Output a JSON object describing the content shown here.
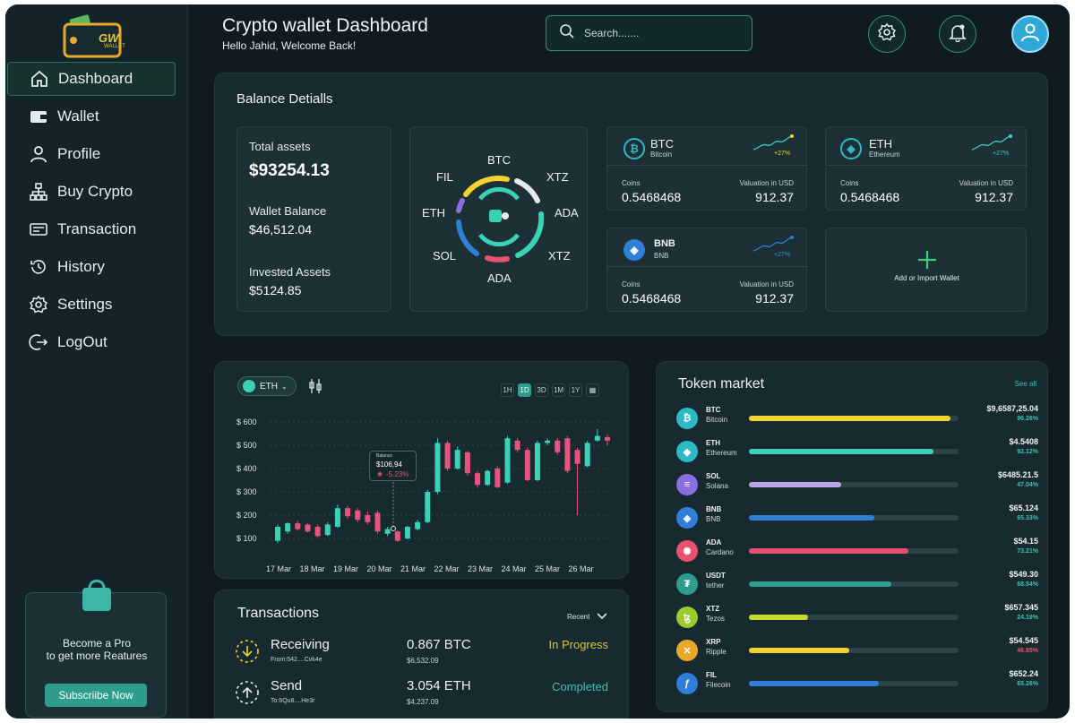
{
  "header": {
    "title": "Crypto wallet Dashboard",
    "subtitle": "Hello Jahid, Welcome Back!",
    "search_placeholder": "Search......."
  },
  "logo": {
    "text": "GW",
    "subtext": "WALLET"
  },
  "sidebar": {
    "items": [
      {
        "label": "Dashboard",
        "icon": "home-icon",
        "active": true
      },
      {
        "label": "Wallet",
        "icon": "wallet-icon"
      },
      {
        "label": "Profile",
        "icon": "user-icon"
      },
      {
        "label": "Buy Crypto",
        "icon": "network-icon"
      },
      {
        "label": "Transaction",
        "icon": "card-icon"
      },
      {
        "label": "History",
        "icon": "history-icon"
      },
      {
        "label": "Settings",
        "icon": "gear-icon"
      },
      {
        "label": "LogOut",
        "icon": "logout-icon"
      }
    ],
    "promo": {
      "line1": "Become a Pro",
      "line2": "to get more Reatures",
      "button": "Subscriibe Now"
    }
  },
  "balance": {
    "title": "Balance Detialls",
    "total_label": "Total assets",
    "total_value": "$93254.13",
    "wallet_label": "Wallet Balance",
    "wallet_value": "$46,512.04",
    "invested_label": "Invested Assets",
    "invested_value": "$5124.85",
    "donut_labels": [
      "BTC",
      "XTZ",
      "ADA",
      "XTZ",
      "ADA",
      "SOL",
      "ETH",
      "FIL"
    ],
    "coins": [
      {
        "symbol": "BTC",
        "name": "Bitcoin",
        "change": "+27%",
        "coins_label": "Coins",
        "coins": "0.5468468",
        "val_label": "Valuation in USD",
        "valuation": "912.37",
        "color": "#2fb9c4"
      },
      {
        "symbol": "ETH",
        "name": "Ethereum",
        "change": "+27%",
        "coins_label": "Coins",
        "coins": "0.5468468",
        "val_label": "Valuation in USD",
        "valuation": "912.37",
        "color": "#2fb9c4"
      },
      {
        "symbol": "BNB",
        "name": "BNB",
        "change": "+27%",
        "coins_label": "Coins",
        "coins": "0.5468468",
        "val_label": "Valuation in USD",
        "valuation": "912.37",
        "color": "#2f7fd6"
      }
    ],
    "add_wallet": "Add or Import Wallet"
  },
  "chart": {
    "coin_selector": "ETH",
    "timeframes": [
      "1H",
      "1D",
      "3D",
      "1M",
      "1Y"
    ],
    "active_timeframe": "1D",
    "tooltip": {
      "title": "Balance",
      "value": "$106,94",
      "change": "-5.23%"
    }
  },
  "chart_data": {
    "type": "candlestick",
    "x_ticks": [
      "17 Mar",
      "18 Mar",
      "19 Mar",
      "20 Mar",
      "21 Mar",
      "22 Mar",
      "23 Mar",
      "24 Mar",
      "25 Mar",
      "26 Mar"
    ],
    "y_ticks": [
      "$ 100",
      "$ 200",
      "$ 300",
      "$ 400",
      "$ 500",
      "$ 600"
    ],
    "ylim": [
      0,
      600
    ],
    "candles": [
      {
        "o": 90,
        "c": 150,
        "h": 160,
        "l": 80
      },
      {
        "o": 130,
        "c": 165,
        "h": 170,
        "l": 120
      },
      {
        "o": 165,
        "c": 140,
        "h": 175,
        "l": 135
      },
      {
        "o": 160,
        "c": 130,
        "h": 165,
        "l": 125
      },
      {
        "o": 150,
        "c": 110,
        "h": 160,
        "l": 105
      },
      {
        "o": 115,
        "c": 160,
        "h": 170,
        "l": 110
      },
      {
        "o": 150,
        "c": 230,
        "h": 245,
        "l": 145
      },
      {
        "o": 230,
        "c": 195,
        "h": 240,
        "l": 185
      },
      {
        "o": 220,
        "c": 180,
        "h": 230,
        "l": 170
      },
      {
        "o": 200,
        "c": 170,
        "h": 215,
        "l": 160
      },
      {
        "o": 210,
        "c": 130,
        "h": 220,
        "l": 120
      },
      {
        "o": 120,
        "c": 140,
        "h": 150,
        "l": 110
      },
      {
        "o": 130,
        "c": 90,
        "h": 135,
        "l": 85
      },
      {
        "o": 100,
        "c": 150,
        "h": 155,
        "l": 95
      },
      {
        "o": 140,
        "c": 170,
        "h": 180,
        "l": 135
      },
      {
        "o": 170,
        "c": 300,
        "h": 310,
        "l": 165
      },
      {
        "o": 300,
        "c": 510,
        "h": 530,
        "l": 290
      },
      {
        "o": 510,
        "c": 400,
        "h": 520,
        "l": 390
      },
      {
        "o": 400,
        "c": 480,
        "h": 495,
        "l": 395
      },
      {
        "o": 470,
        "c": 380,
        "h": 475,
        "l": 370
      },
      {
        "o": 380,
        "c": 330,
        "h": 390,
        "l": 320
      },
      {
        "o": 330,
        "c": 390,
        "h": 395,
        "l": 325
      },
      {
        "o": 400,
        "c": 320,
        "h": 410,
        "l": 315
      },
      {
        "o": 340,
        "c": 530,
        "h": 540,
        "l": 335
      },
      {
        "o": 520,
        "c": 480,
        "h": 530,
        "l": 470
      },
      {
        "o": 480,
        "c": 350,
        "h": 490,
        "l": 345
      },
      {
        "o": 350,
        "c": 510,
        "h": 520,
        "l": 345
      },
      {
        "o": 510,
        "c": 520,
        "h": 530,
        "l": 500
      },
      {
        "o": 520,
        "c": 470,
        "h": 530,
        "l": 460
      },
      {
        "o": 530,
        "c": 390,
        "h": 540,
        "l": 380
      },
      {
        "o": 480,
        "c": 420,
        "h": 490,
        "l": 200
      },
      {
        "o": 410,
        "c": 510,
        "h": 520,
        "l": 405
      },
      {
        "o": 520,
        "c": 540,
        "h": 570,
        "l": 515
      },
      {
        "o": 535,
        "c": 520,
        "h": 545,
        "l": 500
      }
    ]
  },
  "transactions": {
    "title": "Transactions",
    "filter": "Recent",
    "rows": [
      {
        "type": "Receiving",
        "address": "From:542....Cvk4e",
        "amount": "0.867 BTC",
        "usd": "$6,532.09",
        "status": "In Progress",
        "status_color": "#d9c43a"
      },
      {
        "type": "Send",
        "address": "To:6Qu8....He3r",
        "amount": "3.054 ETH",
        "usd": "$4,237.09",
        "status": "Completed",
        "status_color": "#3fc4a8"
      }
    ]
  },
  "token_market": {
    "title": "Token market",
    "see_all": "See all",
    "tokens": [
      {
        "symbol": "BTC",
        "name": "Bitcoin",
        "price": "$9,6587,25.04",
        "pct": "96.26%",
        "fill": 0.96,
        "bar_color": "#f2d130",
        "icon_color": "#2fb9c4",
        "icon": "₿",
        "pct_color": "#3fc4a8"
      },
      {
        "symbol": "ETH",
        "name": "Ethereum",
        "price": "$4.5408",
        "pct": "92.12%",
        "fill": 0.88,
        "bar_color": "#3ad1b5",
        "icon_color": "#2fb9c4",
        "icon": "◆",
        "pct_color": "#3fc4a8"
      },
      {
        "symbol": "SOL",
        "name": "Solana",
        "price": "$6485.21.5",
        "pct": "47.04%",
        "fill": 0.44,
        "bar_color": "#b9a6e8",
        "icon_color": "#8a6ee0",
        "icon": "≡",
        "pct_color": "#3fc4a8"
      },
      {
        "symbol": "BNB",
        "name": "BNB",
        "price": "$65.124",
        "pct": "65.33%",
        "fill": 0.6,
        "bar_color": "#2f7fd6",
        "icon_color": "#2f7fd6",
        "icon": "◈",
        "pct_color": "#3fc4a8"
      },
      {
        "symbol": "ADA",
        "name": "Cardano",
        "price": "$54.15",
        "pct": "73.21%",
        "fill": 0.76,
        "bar_color": "#e8526e",
        "icon_color": "#e8526e",
        "icon": "✺",
        "pct_color": "#3fc4a8"
      },
      {
        "symbol": "USDT",
        "name": "tether",
        "price": "$549.30",
        "pct": "68.54%",
        "fill": 0.68,
        "bar_color": "#2f9d8b",
        "icon_color": "#2f9d8b",
        "icon": "₮",
        "pct_color": "#3fc4a8"
      },
      {
        "symbol": "XTZ",
        "name": "Tezos",
        "price": "$657.345",
        "pct": "24.19%",
        "fill": 0.28,
        "bar_color": "#c3d92b",
        "icon_color": "#9bc92e",
        "icon": "ꜩ",
        "pct_color": "#3fc4a8"
      },
      {
        "symbol": "XRP",
        "name": "Ripple",
        "price": "$54.545",
        "pct": "46.85%",
        "fill": 0.48,
        "bar_color": "#f2d130",
        "icon_color": "#e8a82a",
        "icon": "✕",
        "pct_color": "#e8526e"
      },
      {
        "symbol": "FIL",
        "name": "Filecoin",
        "price": "$652.24",
        "pct": "65.26%",
        "fill": 0.62,
        "bar_color": "#2f7fd6",
        "icon_color": "#2f7fd6",
        "icon": "ƒ",
        "pct_color": "#3fc4a8"
      }
    ]
  }
}
